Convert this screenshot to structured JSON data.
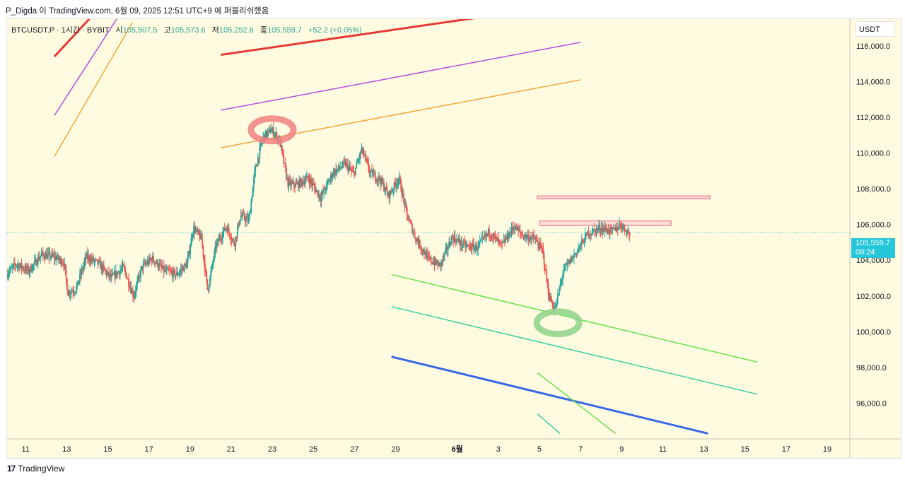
{
  "header": {
    "title_line": "P_Digda 이 TradingView.com, 6월 09, 2025 12:51 UTC+9 에 퍼블리쉬했음"
  },
  "legend": {
    "symbol": "BTCUSDT.P · 1시간 · BYBIT",
    "open_label": "시",
    "open": "105,507.5",
    "high_label": "고",
    "high": "105,573.6",
    "low_label": "저",
    "low": "105,252.6",
    "close_label": "종",
    "close": "105,559.7",
    "change": "+52.2 (+0.05%)"
  },
  "unit_button": "USDT",
  "price_tag": {
    "price": "105,559.7",
    "countdown": "08:24"
  },
  "footer": {
    "logo": "17",
    "brand": "TradingView"
  },
  "colors": {
    "background": "#fffbe0",
    "up": "#26a69a",
    "down": "#ef5350",
    "accent": "#26c6da"
  },
  "chart_data": {
    "type": "candlestick",
    "y_ticks": [
      "116,000.0",
      "114,000.0",
      "112,000.0",
      "110,000.0",
      "108,000.0",
      "106,000.0",
      "104,000.0",
      "102,000.0",
      "100,000.0",
      "98,000.0",
      "96,000.0"
    ],
    "y_tick_values": [
      116000,
      114000,
      112000,
      110000,
      108000,
      106000,
      104000,
      102000,
      100000,
      98000,
      96000
    ],
    "ylim": [
      94000,
      117500
    ],
    "x_ticks": [
      "11",
      "13",
      "15",
      "17",
      "19",
      "21",
      "23",
      "25",
      "27",
      "29",
      "6월",
      "3",
      "5",
      "7",
      "9",
      "11",
      "13",
      "15",
      "17",
      "19"
    ],
    "x_tick_days": [
      11,
      13,
      15,
      17,
      19,
      21,
      23,
      25,
      27,
      29,
      32,
      34,
      36,
      38,
      40,
      42,
      44,
      46,
      48,
      50
    ],
    "xlim": [
      10.1,
      51.1
    ],
    "current_price": 105559.7,
    "price_path": [
      [
        10.1,
        103200
      ],
      [
        10.6,
        103800
      ],
      [
        11.2,
        103400
      ],
      [
        11.8,
        104300
      ],
      [
        12.4,
        104200
      ],
      [
        12.9,
        103900
      ],
      [
        13.1,
        102200
      ],
      [
        13.5,
        102400
      ],
      [
        14.0,
        104200
      ],
      [
        14.6,
        103800
      ],
      [
        15.2,
        103000
      ],
      [
        15.8,
        103600
      ],
      [
        16.3,
        102000
      ],
      [
        16.7,
        103600
      ],
      [
        17.2,
        104100
      ],
      [
        17.8,
        103400
      ],
      [
        18.4,
        103200
      ],
      [
        18.9,
        103800
      ],
      [
        19.2,
        105800
      ],
      [
        19.6,
        105200
      ],
      [
        19.9,
        102300
      ],
      [
        20.3,
        104800
      ],
      [
        20.8,
        105900
      ],
      [
        21.2,
        104900
      ],
      [
        21.5,
        106500
      ],
      [
        21.9,
        106200
      ],
      [
        22.2,
        109000
      ],
      [
        22.6,
        110900
      ],
      [
        23.0,
        111300
      ],
      [
        23.4,
        110700
      ],
      [
        23.8,
        108300
      ],
      [
        24.2,
        108200
      ],
      [
        24.8,
        108600
      ],
      [
        25.4,
        107500
      ],
      [
        26.0,
        108900
      ],
      [
        26.6,
        109400
      ],
      [
        27.0,
        108800
      ],
      [
        27.4,
        110200
      ],
      [
        27.8,
        108900
      ],
      [
        28.3,
        108500
      ],
      [
        28.7,
        107600
      ],
      [
        29.2,
        108600
      ],
      [
        29.6,
        106500
      ],
      [
        30.0,
        105300
      ],
      [
        30.6,
        104100
      ],
      [
        31.2,
        103700
      ],
      [
        31.8,
        105300
      ],
      [
        32.4,
        104800
      ],
      [
        33.0,
        104700
      ],
      [
        33.6,
        105600
      ],
      [
        34.2,
        104800
      ],
      [
        34.8,
        105900
      ],
      [
        35.2,
        105400
      ],
      [
        35.8,
        105200
      ],
      [
        36.2,
        104500
      ],
      [
        36.5,
        102000
      ],
      [
        36.8,
        101200
      ],
      [
        37.2,
        103400
      ],
      [
        37.8,
        104400
      ],
      [
        38.4,
        105500
      ],
      [
        39.0,
        105800
      ],
      [
        39.6,
        105600
      ],
      [
        40.0,
        106000
      ],
      [
        40.4,
        105500
      ]
    ],
    "horizontal_zones": [
      {
        "price_top": 107600,
        "price_bottom": 107450,
        "day_start": 35.9,
        "day_end": 44.3,
        "color": "#f48fb1"
      },
      {
        "price_top": 106200,
        "price_bottom": 105950,
        "day_start": 36.0,
        "day_end": 42.4,
        "color": "#f48fb1"
      }
    ],
    "trend_lines": [
      {
        "color": "#e53935",
        "width": 3,
        "from": [
          12.4,
          115400
        ],
        "to": [
          14.9,
          118500
        ]
      },
      {
        "color": "#b44ee0",
        "width": 1.5,
        "from": [
          12.4,
          112100
        ],
        "to": [
          15.6,
          117800
        ]
      },
      {
        "color": "#f4a53a",
        "width": 1.5,
        "from": [
          12.4,
          109800
        ],
        "to": [
          16.2,
          117300
        ]
      },
      {
        "color": "#e53935",
        "width": 3,
        "from": [
          20.5,
          115500
        ],
        "to": [
          35.5,
          118000
        ]
      },
      {
        "color": "#b44ee0",
        "width": 1.5,
        "from": [
          20.5,
          112400
        ],
        "to": [
          38.0,
          116200
        ]
      },
      {
        "color": "#f4a53a",
        "width": 1.5,
        "from": [
          20.5,
          110300
        ],
        "to": [
          38.0,
          114100
        ]
      },
      {
        "color": "#66e04a",
        "width": 1.5,
        "from": [
          28.8,
          103200
        ],
        "to": [
          46.6,
          98300
        ]
      },
      {
        "color": "#3ccfa3",
        "width": 1.5,
        "from": [
          28.8,
          101400
        ],
        "to": [
          46.6,
          96500
        ]
      },
      {
        "color": "#3a66e8",
        "width": 3,
        "from": [
          28.8,
          98600
        ],
        "to": [
          44.2,
          94300
        ]
      },
      {
        "color": "#66e04a",
        "width": 1.5,
        "from": [
          35.9,
          97700
        ],
        "to": [
          39.7,
          94300
        ]
      },
      {
        "color": "#3ccfa3",
        "width": 1.5,
        "from": [
          35.9,
          95400
        ],
        "to": [
          37.0,
          94300
        ]
      }
    ],
    "markers": [
      {
        "shape": "ellipse",
        "color": "#f08080",
        "day": 23.0,
        "price": 111300
      },
      {
        "shape": "ellipse",
        "color": "#8fd18a",
        "day": 36.9,
        "price": 100500
      }
    ]
  }
}
